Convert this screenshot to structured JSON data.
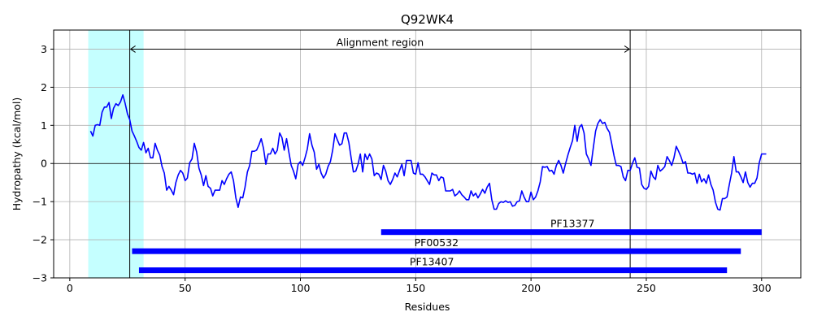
{
  "chart_data": {
    "type": "line",
    "title": "Q92WK4",
    "xlabel": "Residues",
    "ylabel": "Hydropathy (kcal/mol)",
    "xlim": [
      -7,
      317
    ],
    "ylim": [
      -3,
      3.5
    ],
    "xticks": [
      0,
      50,
      100,
      150,
      200,
      250,
      300
    ],
    "yticks": [
      -3,
      -2,
      -1,
      0,
      1,
      2,
      3
    ],
    "grid": true,
    "series": [
      {
        "color": "#0000ff",
        "x": [
          9,
          10,
          11,
          12,
          13,
          14,
          15,
          16,
          17,
          18,
          19,
          20,
          21,
          22,
          23,
          24,
          25,
          26,
          27,
          28,
          29,
          30,
          31,
          32,
          33,
          34,
          35,
          36,
          37,
          38,
          39,
          40,
          41,
          42,
          43,
          44,
          45,
          46,
          47,
          48,
          49,
          50,
          51,
          52,
          53,
          54,
          55,
          56,
          57,
          58,
          59,
          60,
          61,
          62,
          63,
          64,
          65,
          66,
          67,
          68,
          69,
          70,
          71,
          72,
          73,
          74,
          75,
          76,
          77,
          78,
          79,
          80,
          81,
          82,
          83,
          84,
          85,
          86,
          87,
          88,
          89,
          90,
          91,
          92,
          93,
          94,
          95,
          96,
          97,
          98,
          99,
          100,
          101,
          102,
          103,
          104,
          105,
          106,
          107,
          108,
          109,
          110,
          111,
          112,
          113,
          114,
          115,
          116,
          117,
          118,
          119,
          120,
          121,
          122,
          123,
          124,
          125,
          126,
          127,
          128,
          129,
          130,
          131,
          132,
          133,
          134,
          135,
          136,
          137,
          138,
          139,
          140,
          141,
          142,
          143,
          144,
          145,
          146,
          147,
          148,
          149,
          150,
          151,
          152,
          153,
          154,
          155,
          156,
          157,
          158,
          159,
          160,
          161,
          162,
          163,
          164,
          165,
          166,
          167,
          168,
          169,
          170,
          171,
          172,
          173,
          174,
          175,
          176,
          177,
          178,
          179,
          180,
          181,
          182,
          183,
          184,
          185,
          186,
          187,
          188,
          189,
          190,
          191,
          192,
          193,
          194,
          195,
          196,
          197,
          198,
          199,
          200,
          201,
          202,
          203,
          204,
          205,
          206,
          207,
          208,
          209,
          210,
          211,
          212,
          213,
          214,
          215,
          216,
          217,
          218,
          219,
          220,
          221,
          222,
          223,
          224,
          225,
          226,
          227,
          228,
          229,
          230,
          231,
          232,
          233,
          234,
          235,
          236,
          237,
          238,
          239,
          240,
          241,
          242,
          243,
          244,
          245,
          246,
          247,
          248,
          249,
          250,
          251,
          252,
          253,
          254,
          255,
          256,
          257,
          258,
          259,
          260,
          261,
          262,
          263,
          264,
          265,
          266,
          267,
          268,
          269,
          270,
          271,
          272,
          273,
          274,
          275,
          276,
          277,
          278,
          279,
          280,
          281,
          282,
          283,
          284,
          285,
          286,
          287,
          288,
          289,
          290,
          291,
          292,
          293,
          294,
          295,
          296,
          297,
          298,
          299,
          300,
          301,
          302
        ],
        "values": [
          0.85,
          0.72,
          1.0,
          1.02,
          1.0,
          1.35,
          1.48,
          1.48,
          1.6,
          1.18,
          1.45,
          1.57,
          1.52,
          1.62,
          1.8,
          1.58,
          1.3,
          1.15,
          0.85,
          0.72,
          0.58,
          0.42,
          0.35,
          0.55,
          0.28,
          0.4,
          0.15,
          0.15,
          0.53,
          0.35,
          0.22,
          -0.08,
          -0.25,
          -0.7,
          -0.6,
          -0.7,
          -0.82,
          -0.5,
          -0.3,
          -0.18,
          -0.25,
          -0.45,
          -0.38,
          0.02,
          0.12,
          0.53,
          0.3,
          -0.12,
          -0.3,
          -0.58,
          -0.32,
          -0.6,
          -0.65,
          -0.85,
          -0.7,
          -0.7,
          -0.7,
          -0.45,
          -0.55,
          -0.4,
          -0.28,
          -0.22,
          -0.45,
          -0.9,
          -1.15,
          -0.88,
          -0.9,
          -0.62,
          -0.22,
          -0.05,
          0.32,
          0.32,
          0.35,
          0.48,
          0.65,
          0.4,
          -0.02,
          0.25,
          0.25,
          0.4,
          0.25,
          0.35,
          0.8,
          0.68,
          0.35,
          0.65,
          0.3,
          -0.05,
          -0.2,
          -0.4,
          -0.02,
          0.05,
          -0.05,
          0.15,
          0.38,
          0.78,
          0.48,
          0.3,
          -0.15,
          -0.02,
          -0.25,
          -0.38,
          -0.28,
          -0.08,
          0.05,
          0.35,
          0.78,
          0.62,
          0.48,
          0.52,
          0.8,
          0.8,
          0.55,
          0.15,
          -0.22,
          -0.2,
          -0.02,
          0.25,
          -0.22,
          0.25,
          0.1,
          0.25,
          0.12,
          -0.32,
          -0.25,
          -0.28,
          -0.42,
          -0.05,
          -0.2,
          -0.45,
          -0.55,
          -0.42,
          -0.25,
          -0.35,
          -0.18,
          -0.02,
          -0.32,
          0.08,
          0.08,
          0.08,
          -0.25,
          -0.28,
          0.02,
          -0.28,
          -0.28,
          -0.35,
          -0.45,
          -0.55,
          -0.25,
          -0.3,
          -0.3,
          -0.45,
          -0.35,
          -0.38,
          -0.72,
          -0.72,
          -0.72,
          -0.68,
          -0.85,
          -0.8,
          -0.72,
          -0.82,
          -0.88,
          -0.95,
          -0.95,
          -0.72,
          -0.85,
          -0.78,
          -0.9,
          -0.8,
          -0.68,
          -0.78,
          -0.62,
          -0.52,
          -0.95,
          -1.2,
          -1.2,
          -1.05,
          -1.0,
          -1.02,
          -0.98,
          -1.02,
          -1.0,
          -1.12,
          -1.1,
          -1.0,
          -0.98,
          -0.72,
          -0.88,
          -1.0,
          -1.0,
          -0.75,
          -0.95,
          -0.88,
          -0.72,
          -0.48,
          -0.08,
          -0.1,
          -0.08,
          -0.2,
          -0.18,
          -0.28,
          -0.05,
          0.08,
          -0.05,
          -0.25,
          0.0,
          0.22,
          0.42,
          0.6,
          1.0,
          0.58,
          0.95,
          1.02,
          0.8,
          0.25,
          0.12,
          -0.05,
          0.4,
          0.85,
          1.05,
          1.15,
          1.05,
          1.08,
          0.92,
          0.82,
          0.52,
          0.2,
          -0.05,
          -0.05,
          -0.08,
          -0.35,
          -0.45,
          -0.18,
          -0.18,
          0.0,
          0.15,
          -0.1,
          -0.12,
          -0.55,
          -0.65,
          -0.68,
          -0.6,
          -0.2,
          -0.35,
          -0.42,
          -0.05,
          -0.2,
          -0.15,
          -0.08,
          0.18,
          0.08,
          -0.05,
          0.15,
          0.45,
          0.32,
          0.18,
          0.0,
          0.05,
          -0.25,
          -0.25,
          -0.28,
          -0.25,
          -0.52,
          -0.28,
          -0.48,
          -0.4,
          -0.52,
          -0.3,
          -0.55,
          -0.7,
          -1.02,
          -1.2,
          -1.22,
          -0.92,
          -0.92,
          -0.88,
          -0.55,
          -0.25,
          0.18,
          -0.22,
          -0.22,
          -0.35,
          -0.5,
          -0.22,
          -0.5,
          -0.62,
          -0.52,
          -0.52,
          -0.38,
          0.02,
          0.25,
          0.25,
          0.25
        ]
      }
    ],
    "highlight_region": {
      "x0": 8,
      "x1": 32,
      "color": "#c5ffff"
    },
    "vertical_lines": [
      26,
      243
    ],
    "alignment_arrow": {
      "x0": 26,
      "x1": 243,
      "y": 3.0,
      "label": "Alignment region"
    },
    "domains": [
      {
        "name": "PF13377",
        "start": 135,
        "end": 300,
        "y": -1.8,
        "label_x": 218,
        "label_y": -1.8
      },
      {
        "name": "PF00532",
        "start": 27,
        "end": 291,
        "y": -2.3,
        "label_x": 159,
        "label_y": -2.3
      },
      {
        "name": "PF13407",
        "start": 30,
        "end": 285,
        "y": -2.8,
        "label_x": 157,
        "label_y": -2.8
      }
    ]
  }
}
